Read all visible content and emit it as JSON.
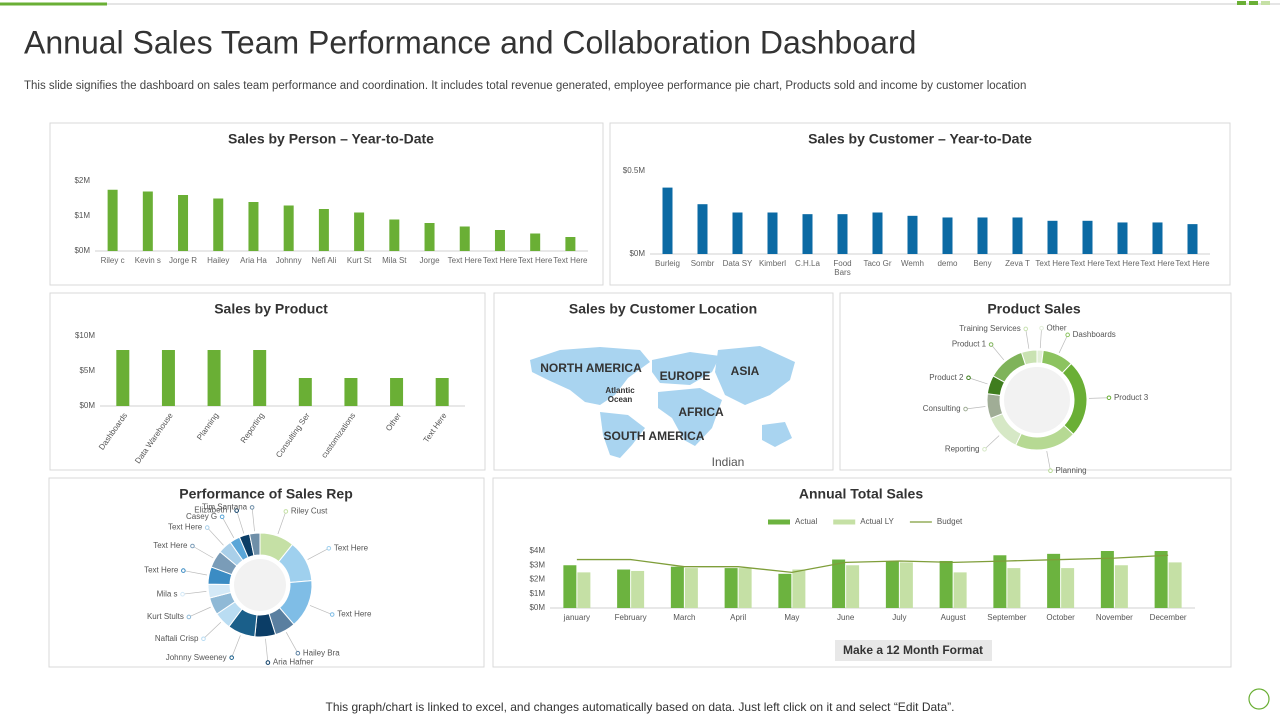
{
  "title": "Annual Sales Team Performance and Collaboration  Dashboard",
  "description": "This slide signifies the dashboard on sales team performance and coordination. It includes total revenue generated, employee performance pie chart, Products sold and income by customer location",
  "footer": "This graph/chart is linked to excel,  and changes automatically based on data. Just left click on it and select “Edit Data”.",
  "button_label": "Make a 12 Month Format",
  "chart_data": [
    {
      "type": "bar",
      "title": "Sales by Person – Year-to-Date",
      "categories": [
        "Riley c",
        "Kevin s",
        "Jorge R",
        "Hailey",
        "Aria Ha",
        "Johnny",
        "Nefi Ali",
        "Kurt St",
        "Mila St",
        "Jorge",
        "Text Here",
        "Text Here",
        "Text Here",
        "Text Here"
      ],
      "values": [
        1.75,
        1.7,
        1.6,
        1.5,
        1.4,
        1.3,
        1.2,
        1.1,
        0.9,
        0.8,
        0.7,
        0.6,
        0.5,
        0.4
      ],
      "color": "#6aaf35",
      "ylim": [
        0,
        2
      ],
      "yticks": [
        {
          "value": 0,
          "label": "$0M"
        },
        {
          "value": 1,
          "label": "$1M"
        },
        {
          "value": 2,
          "label": "$2M"
        }
      ],
      "grid": false
    },
    {
      "type": "bar",
      "title": "Sales by Customer – Year-to-Date",
      "categories": [
        "Burleig",
        "Sombr",
        "Data SY",
        "Kimberl",
        "C.H.La",
        "Food Bars",
        "Taco Gr",
        "Wemh",
        "demo",
        "Beny",
        "Zeva T",
        "Text Here",
        "Text Here",
        "Text Here",
        "Text Here",
        "Text Here"
      ],
      "values": [
        0.4,
        0.3,
        0.25,
        0.25,
        0.24,
        0.24,
        0.25,
        0.23,
        0.22,
        0.22,
        0.22,
        0.2,
        0.2,
        0.19,
        0.19,
        0.18
      ],
      "color": "#0b6aa4",
      "ylim": [
        0,
        0.5
      ],
      "yticks": [
        {
          "value": 0,
          "label": "$0M"
        },
        {
          "value": 0.5,
          "label": "$0.5M"
        }
      ],
      "grid": false
    },
    {
      "type": "bar",
      "title": "Sales by Product",
      "categories": [
        "Dashboards",
        "Data Warehouse",
        "Planning",
        "Reporting",
        "Consulting Ser",
        "customizations",
        "Other",
        "Text Here"
      ],
      "values": [
        8,
        8,
        8,
        8,
        4,
        4,
        4,
        4
      ],
      "color": "#6aaf35",
      "ylim": [
        0,
        10
      ],
      "yticks": [
        {
          "value": 0,
          "label": "$0M"
        },
        {
          "value": 5,
          "label": "$5M"
        },
        {
          "value": 10,
          "label": "$10M"
        }
      ],
      "grid": false
    },
    {
      "type": "map",
      "title": "Sales by Customer Location",
      "labels": [
        "NORTH AMERICA",
        "EUROPE",
        "ASIA",
        "Atlantic Ocean",
        "AFRICA",
        "SOUTH AMERICA",
        "Indian"
      ]
    },
    {
      "type": "donut",
      "title": "Product Sales",
      "categories": [
        "Other",
        "Dashboards",
        "Product 3",
        "Planning",
        "Reporting",
        "Consulting",
        "Product 2",
        "Product 1",
        "Training Services"
      ],
      "values": [
        2,
        10,
        25,
        20,
        12,
        8,
        6,
        12,
        5
      ],
      "colors": [
        "#e3efd9",
        "#8cc35f",
        "#6aaf35",
        "#b6d993",
        "#d6e8c6",
        "#a0ad96",
        "#3f7d1e",
        "#7fb35a",
        "#c9e2b2"
      ]
    },
    {
      "type": "donut",
      "title": "Performance of Sales Rep",
      "categories": [
        "Riley Cust",
        "Text Here",
        "Text Here",
        "Hailey Bra",
        "Aria Hafner",
        "Johnny Sweeney",
        "Naftali Crisp",
        "Kurt Stults",
        "Mila s",
        "Text Here",
        "Text Here",
        "Text Here",
        "Casey G",
        "Elizabeth I",
        "Tim Santana"
      ],
      "values": [
        10,
        12,
        14,
        6,
        6,
        8,
        5,
        5,
        4,
        5,
        5,
        4,
        3,
        3,
        3
      ],
      "colors": [
        "#c5e0a5",
        "#9fd0ee",
        "#7fbde6",
        "#5a7fa0",
        "#0b3d66",
        "#1a5f8a",
        "#b9dcf2",
        "#8fb9d6",
        "#d4e9f7",
        "#3b8cc4",
        "#7a9cb8",
        "#a9cfe9",
        "#5aa6d8",
        "#0b3d66",
        "#6f8fa8"
      ]
    },
    {
      "type": "bar",
      "title": "Annual  Total Sales",
      "categories": [
        "january",
        "February",
        "March",
        "April",
        "May",
        "June",
        "July",
        "August",
        "September",
        "October",
        "November",
        "December"
      ],
      "series": [
        {
          "name": "Actual",
          "color": "#6cb33f",
          "values": [
            3.0,
            2.7,
            2.9,
            2.8,
            2.4,
            3.4,
            3.3,
            3.3,
            3.7,
            3.8,
            4.0,
            4.0
          ]
        },
        {
          "name": "Actual LY",
          "color": "#c5e0a5",
          "values": [
            2.5,
            2.6,
            2.8,
            2.8,
            2.7,
            3.0,
            3.2,
            2.5,
            2.8,
            2.8,
            3.0,
            3.2
          ]
        },
        {
          "name": "Budget",
          "type": "line",
          "color": "#7f9e3a",
          "values": [
            3.4,
            3.4,
            2.9,
            2.9,
            2.5,
            3.2,
            3.3,
            3.2,
            3.3,
            3.4,
            3.5,
            3.7
          ]
        }
      ],
      "ylim": [
        0,
        4
      ],
      "yticks": [
        {
          "value": 0,
          "label": "$0M"
        },
        {
          "value": 1,
          "label": "$1M"
        },
        {
          "value": 2,
          "label": "$2M"
        },
        {
          "value": 3,
          "label": "$3M"
        },
        {
          "value": 4,
          "label": "$4M"
        }
      ],
      "grid": false
    }
  ]
}
